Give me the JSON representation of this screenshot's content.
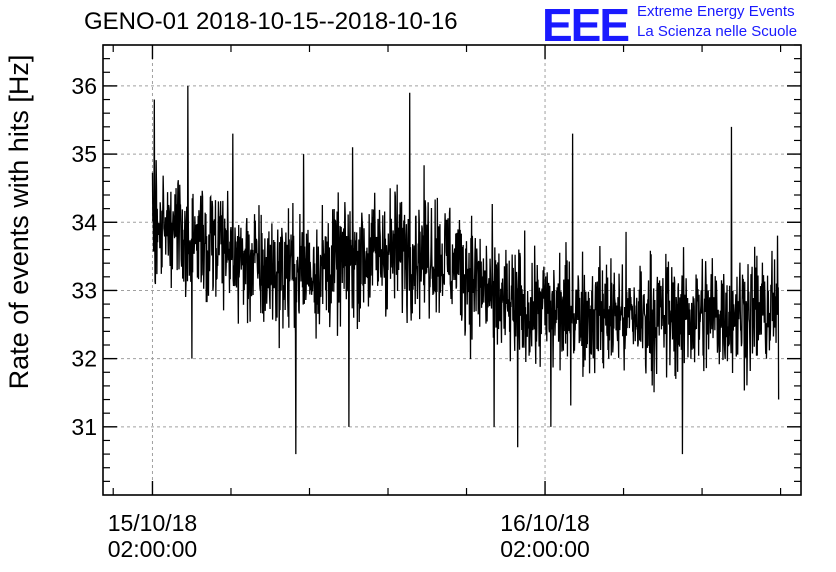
{
  "logo": {
    "mark": "EEE",
    "line1": "Extreme Energy Events",
    "line2": "La Scienza nelle Scuole"
  },
  "colors": {
    "series": "#000000",
    "grid": "#a0a0a0",
    "logo": "#1a1aff"
  },
  "chart_data": {
    "type": "line",
    "title": "GENO-01 2018-10-15--2018-10-16",
    "xlabel": "",
    "ylabel": "Rate of events with hits [Hz]",
    "x_unit": "hours since 2018-10-15 00:00",
    "xlim": [
      -0.52,
      35.04
    ],
    "ylim": [
      30.0,
      36.6
    ],
    "yticks": [
      31,
      32,
      33,
      34,
      35,
      36
    ],
    "xticks": [
      {
        "value": 2,
        "label_date": "15/10/18",
        "label_time": "02:00:00"
      },
      {
        "value": 22,
        "label_date": "16/10/18",
        "label_time": "02:00:00"
      }
    ],
    "grid": true,
    "series": [
      {
        "name": "",
        "x_start": 2.0,
        "x_end": 33.9,
        "noise_amplitude": 0.7,
        "baseline": [
          {
            "x": 2.0,
            "y": 33.9
          },
          {
            "x": 5.0,
            "y": 33.65
          },
          {
            "x": 8.0,
            "y": 33.25
          },
          {
            "x": 11.0,
            "y": 33.35
          },
          {
            "x": 14.0,
            "y": 33.6
          },
          {
            "x": 16.5,
            "y": 33.55
          },
          {
            "x": 18.0,
            "y": 33.3
          },
          {
            "x": 20.0,
            "y": 32.75
          },
          {
            "x": 23.0,
            "y": 32.7
          },
          {
            "x": 27.0,
            "y": 32.6
          },
          {
            "x": 30.0,
            "y": 32.65
          },
          {
            "x": 33.9,
            "y": 32.7
          }
        ],
        "extremes": [
          {
            "x": 2.1,
            "y": 35.8
          },
          {
            "x": 3.8,
            "y": 36.0
          },
          {
            "x": 6.1,
            "y": 35.3
          },
          {
            "x": 9.7,
            "y": 35.0
          },
          {
            "x": 12.2,
            "y": 35.1
          },
          {
            "x": 15.1,
            "y": 35.9
          },
          {
            "x": 23.4,
            "y": 35.3
          },
          {
            "x": 31.5,
            "y": 35.4
          },
          {
            "x": 4.0,
            "y": 32.0
          },
          {
            "x": 9.3,
            "y": 30.6
          },
          {
            "x": 12.0,
            "y": 31.0
          },
          {
            "x": 19.4,
            "y": 31.0
          },
          {
            "x": 20.6,
            "y": 30.7
          },
          {
            "x": 22.3,
            "y": 31.0
          },
          {
            "x": 29.0,
            "y": 30.6
          },
          {
            "x": 33.9,
            "y": 31.4
          }
        ]
      }
    ]
  }
}
